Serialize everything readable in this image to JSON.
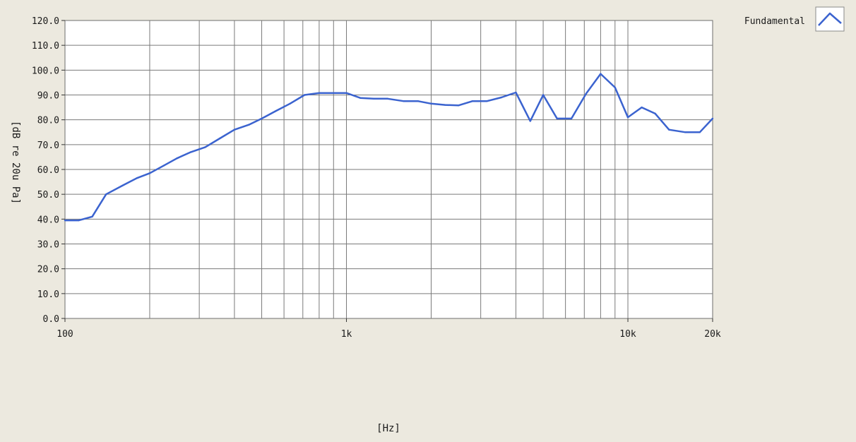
{
  "chart_data": {
    "type": "line",
    "xlabel": "[Hz]",
    "ylabel": "[dB re 20u Pa]",
    "x_scale": "log",
    "xlim": [
      100,
      20000
    ],
    "ylim": [
      0,
      120
    ],
    "yticks": [
      "0.0",
      "10.0",
      "20.0",
      "30.0",
      "40.0",
      "50.0",
      "60.0",
      "70.0",
      "80.0",
      "90.0",
      "100.0",
      "110.0",
      "120.0"
    ],
    "xticks": [
      {
        "value": 100,
        "label": "100"
      },
      {
        "value": 1000,
        "label": "1k"
      },
      {
        "value": 10000,
        "label": "10k"
      },
      {
        "value": 20000,
        "label": "20k"
      }
    ],
    "grid": true,
    "legend_position": "top-right",
    "colors": {
      "series": "#3b63cf",
      "plot_bg": "#ffffff",
      "page_bg": "#ece9df",
      "grid": "#7a7a7a"
    },
    "series": [
      {
        "name": "Fundamental",
        "x": [
          100,
          112,
          125,
          140,
          160,
          180,
          200,
          224,
          250,
          280,
          315,
          355,
          400,
          450,
          500,
          560,
          630,
          710,
          800,
          900,
          1000,
          1120,
          1250,
          1400,
          1600,
          1800,
          2000,
          2240,
          2500,
          2800,
          3150,
          3550,
          4000,
          4500,
          5000,
          5600,
          6300,
          7100,
          8000,
          9000,
          10000,
          11200,
          12500,
          14000,
          16000,
          18000,
          20000
        ],
        "y": [
          39.5,
          39.5,
          41,
          50,
          53.5,
          56.5,
          58.5,
          61.5,
          64.5,
          67,
          69,
          72.5,
          76,
          78,
          80.5,
          83.5,
          86.5,
          90,
          90.8,
          90.8,
          90.8,
          88.8,
          88.5,
          88.5,
          87.5,
          87.5,
          86.5,
          86,
          85.8,
          87.5,
          87.5,
          89,
          91,
          79.5,
          90,
          80.5,
          80.5,
          90.5,
          98.5,
          93,
          81,
          85,
          82.5,
          76,
          75,
          75,
          80.5
        ]
      }
    ]
  }
}
